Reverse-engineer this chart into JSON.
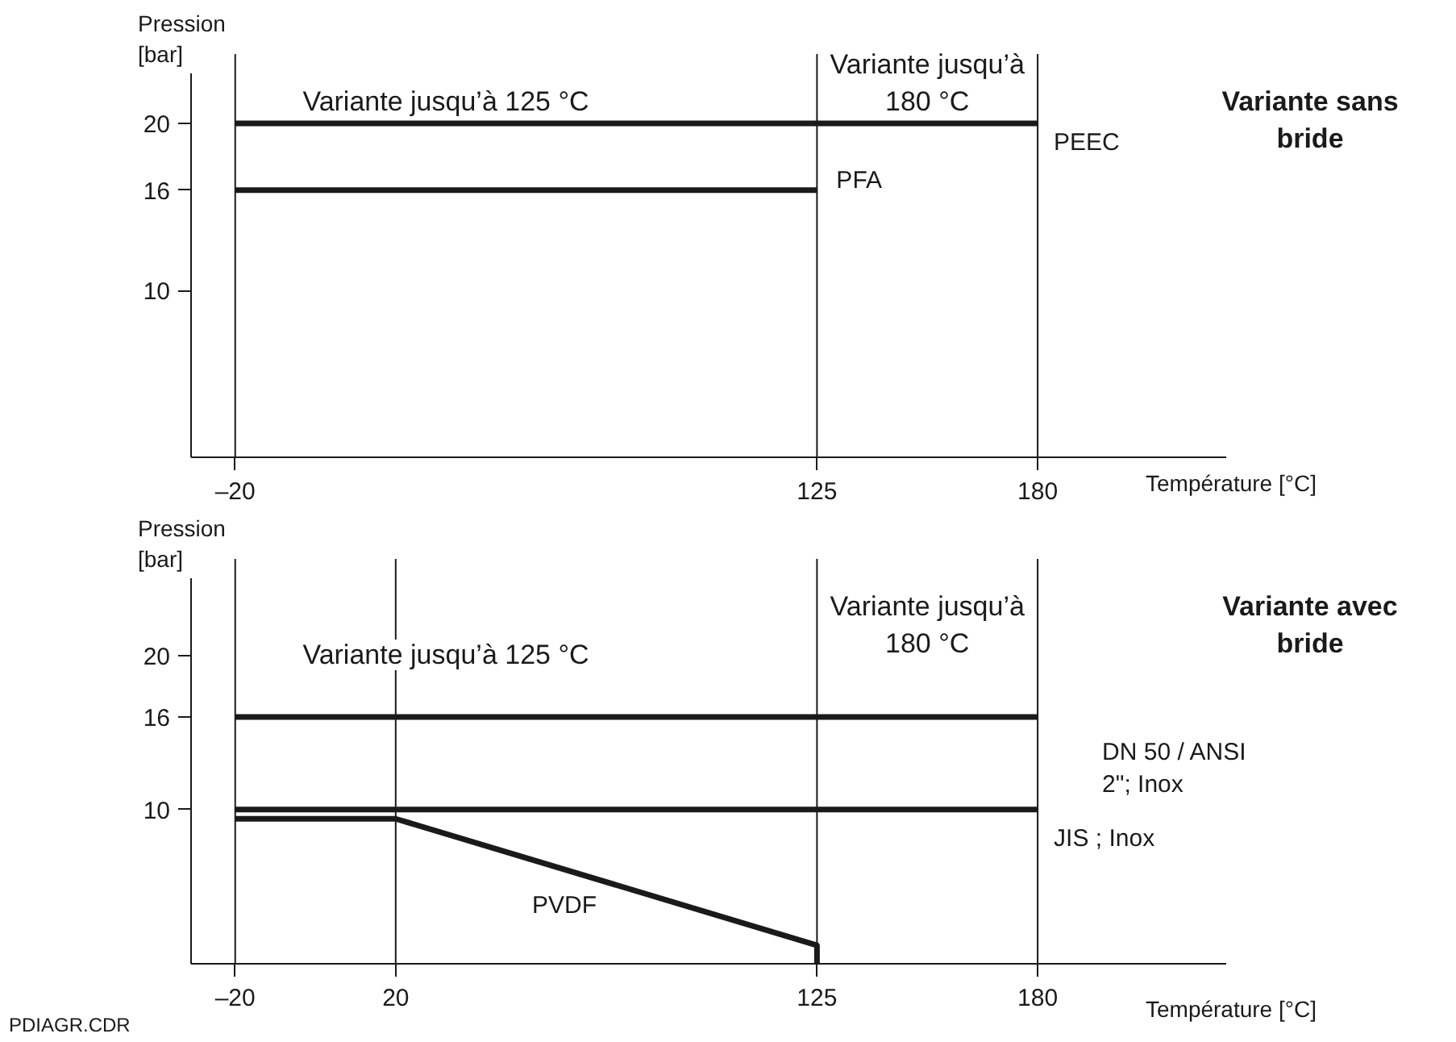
{
  "chart_data": [
    {
      "type": "line",
      "title": "Variante sans bride",
      "ylabel": "Pression [bar]",
      "xlabel": "Température [°C]",
      "annotations": [
        "Variante jusqu’à 125 °C",
        "Variante jusqu’à 180 °C"
      ],
      "xlim": [
        -31,
        227
      ],
      "ylim": [
        0,
        23
      ],
      "xticks": [
        {
          "value": -20,
          "label": "–20"
        },
        125,
        180
      ],
      "yticks": [
        10,
        16,
        20
      ],
      "series": [
        {
          "name": "PEEC",
          "color": "#1a1a1a",
          "x": [
            -20,
            180
          ],
          "values": [
            20,
            20
          ]
        },
        {
          "name": "PFA",
          "color": "#1a1a1a",
          "x": [
            -20,
            125
          ],
          "values": [
            16,
            16
          ]
        }
      ],
      "grid": "x",
      "marker": "none",
      "line_style": "solid"
    },
    {
      "type": "line",
      "title": "Variante avec bride",
      "ylabel": "Pression [bar]",
      "xlabel": "Température [°C]",
      "annotations": [
        "Variante jusqu’à 125 °C",
        "Variante jusqu’à 180 °C",
        "PDIAGR.CDR"
      ],
      "xlim": [
        -31,
        227
      ],
      "ylim": [
        0,
        25
      ],
      "xticks": [
        {
          "value": -20,
          "label": "–20"
        },
        20,
        125,
        180
      ],
      "yticks": [
        10,
        16,
        20
      ],
      "series": [
        {
          "name": "DN 50 / ANSI 2\"; Inox",
          "color": "#1a1a1a",
          "x": [
            -20,
            180
          ],
          "values": [
            16,
            16
          ]
        },
        {
          "name": "JIS ; Inox",
          "color": "#1a1a1a",
          "x": [
            -20,
            180
          ],
          "values": [
            10,
            10
          ]
        },
        {
          "name": "PVDF",
          "color": "#1a1a1a",
          "x": [
            -20,
            20,
            125,
            125
          ],
          "values": [
            9.4,
            9.4,
            1.2,
            0
          ]
        }
      ],
      "grid": "x",
      "marker": "none",
      "line_style": "solid"
    }
  ]
}
